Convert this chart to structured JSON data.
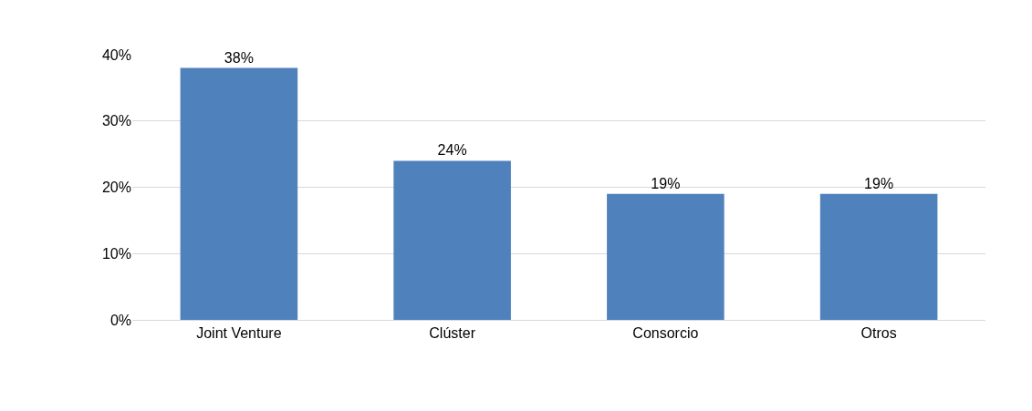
{
  "chart_data": {
    "type": "bar",
    "categories": [
      "Joint Venture",
      "Clúster",
      "Consorcio",
      "Otros"
    ],
    "values": [
      38,
      24,
      19,
      19
    ],
    "value_labels": [
      "38%",
      "24%",
      "19%",
      "19%"
    ],
    "color": "#4f81bd",
    "ylim": [
      0,
      40
    ],
    "yticks": [
      {
        "value": 0,
        "label": "0%"
      },
      {
        "value": 10,
        "label": "10%"
      },
      {
        "value": 20,
        "label": "20%"
      },
      {
        "value": 30,
        "label": "30%"
      },
      {
        "value": 40,
        "label": "40%"
      }
    ],
    "grid": "y"
  }
}
